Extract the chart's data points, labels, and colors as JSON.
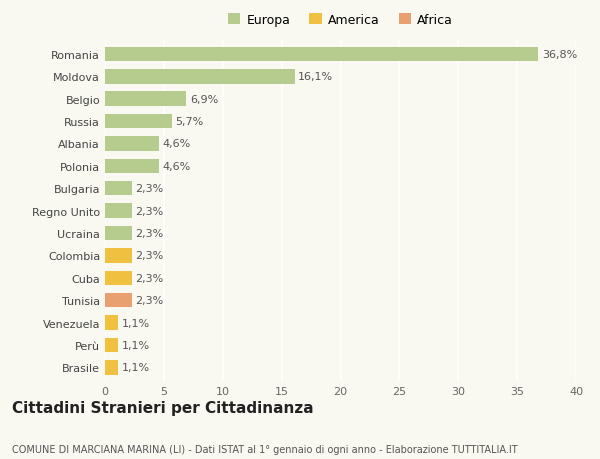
{
  "categories": [
    "Romania",
    "Moldova",
    "Belgio",
    "Russia",
    "Albania",
    "Polonia",
    "Bulgaria",
    "Regno Unito",
    "Ucraina",
    "Colombia",
    "Cuba",
    "Tunisia",
    "Venezuela",
    "Perù",
    "Brasile"
  ],
  "values": [
    36.8,
    16.1,
    6.9,
    5.7,
    4.6,
    4.6,
    2.3,
    2.3,
    2.3,
    2.3,
    2.3,
    2.3,
    1.1,
    1.1,
    1.1
  ],
  "labels": [
    "36,8%",
    "16,1%",
    "6,9%",
    "5,7%",
    "4,6%",
    "4,6%",
    "2,3%",
    "2,3%",
    "2,3%",
    "2,3%",
    "2,3%",
    "2,3%",
    "1,1%",
    "1,1%",
    "1,1%"
  ],
  "continent": [
    "Europa",
    "Europa",
    "Europa",
    "Europa",
    "Europa",
    "Europa",
    "Europa",
    "Europa",
    "Europa",
    "America",
    "America",
    "Africa",
    "America",
    "America",
    "America"
  ],
  "colors": {
    "Europa": "#b5cc8e",
    "America": "#f0c040",
    "Africa": "#e8a070"
  },
  "xlim": [
    0,
    40
  ],
  "xticks": [
    0,
    5,
    10,
    15,
    20,
    25,
    30,
    35,
    40
  ],
  "title": "Cittadini Stranieri per Cittadinanza",
  "subtitle": "COMUNE DI MARCIANA MARINA (LI) - Dati ISTAT al 1° gennaio di ogni anno - Elaborazione TUTTITALIA.IT",
  "background_color": "#f9f9f2",
  "grid_color": "#ffffff",
  "bar_height": 0.65,
  "title_fontsize": 11,
  "subtitle_fontsize": 7,
  "label_fontsize": 8,
  "tick_fontsize": 8,
  "legend_fontsize": 9
}
